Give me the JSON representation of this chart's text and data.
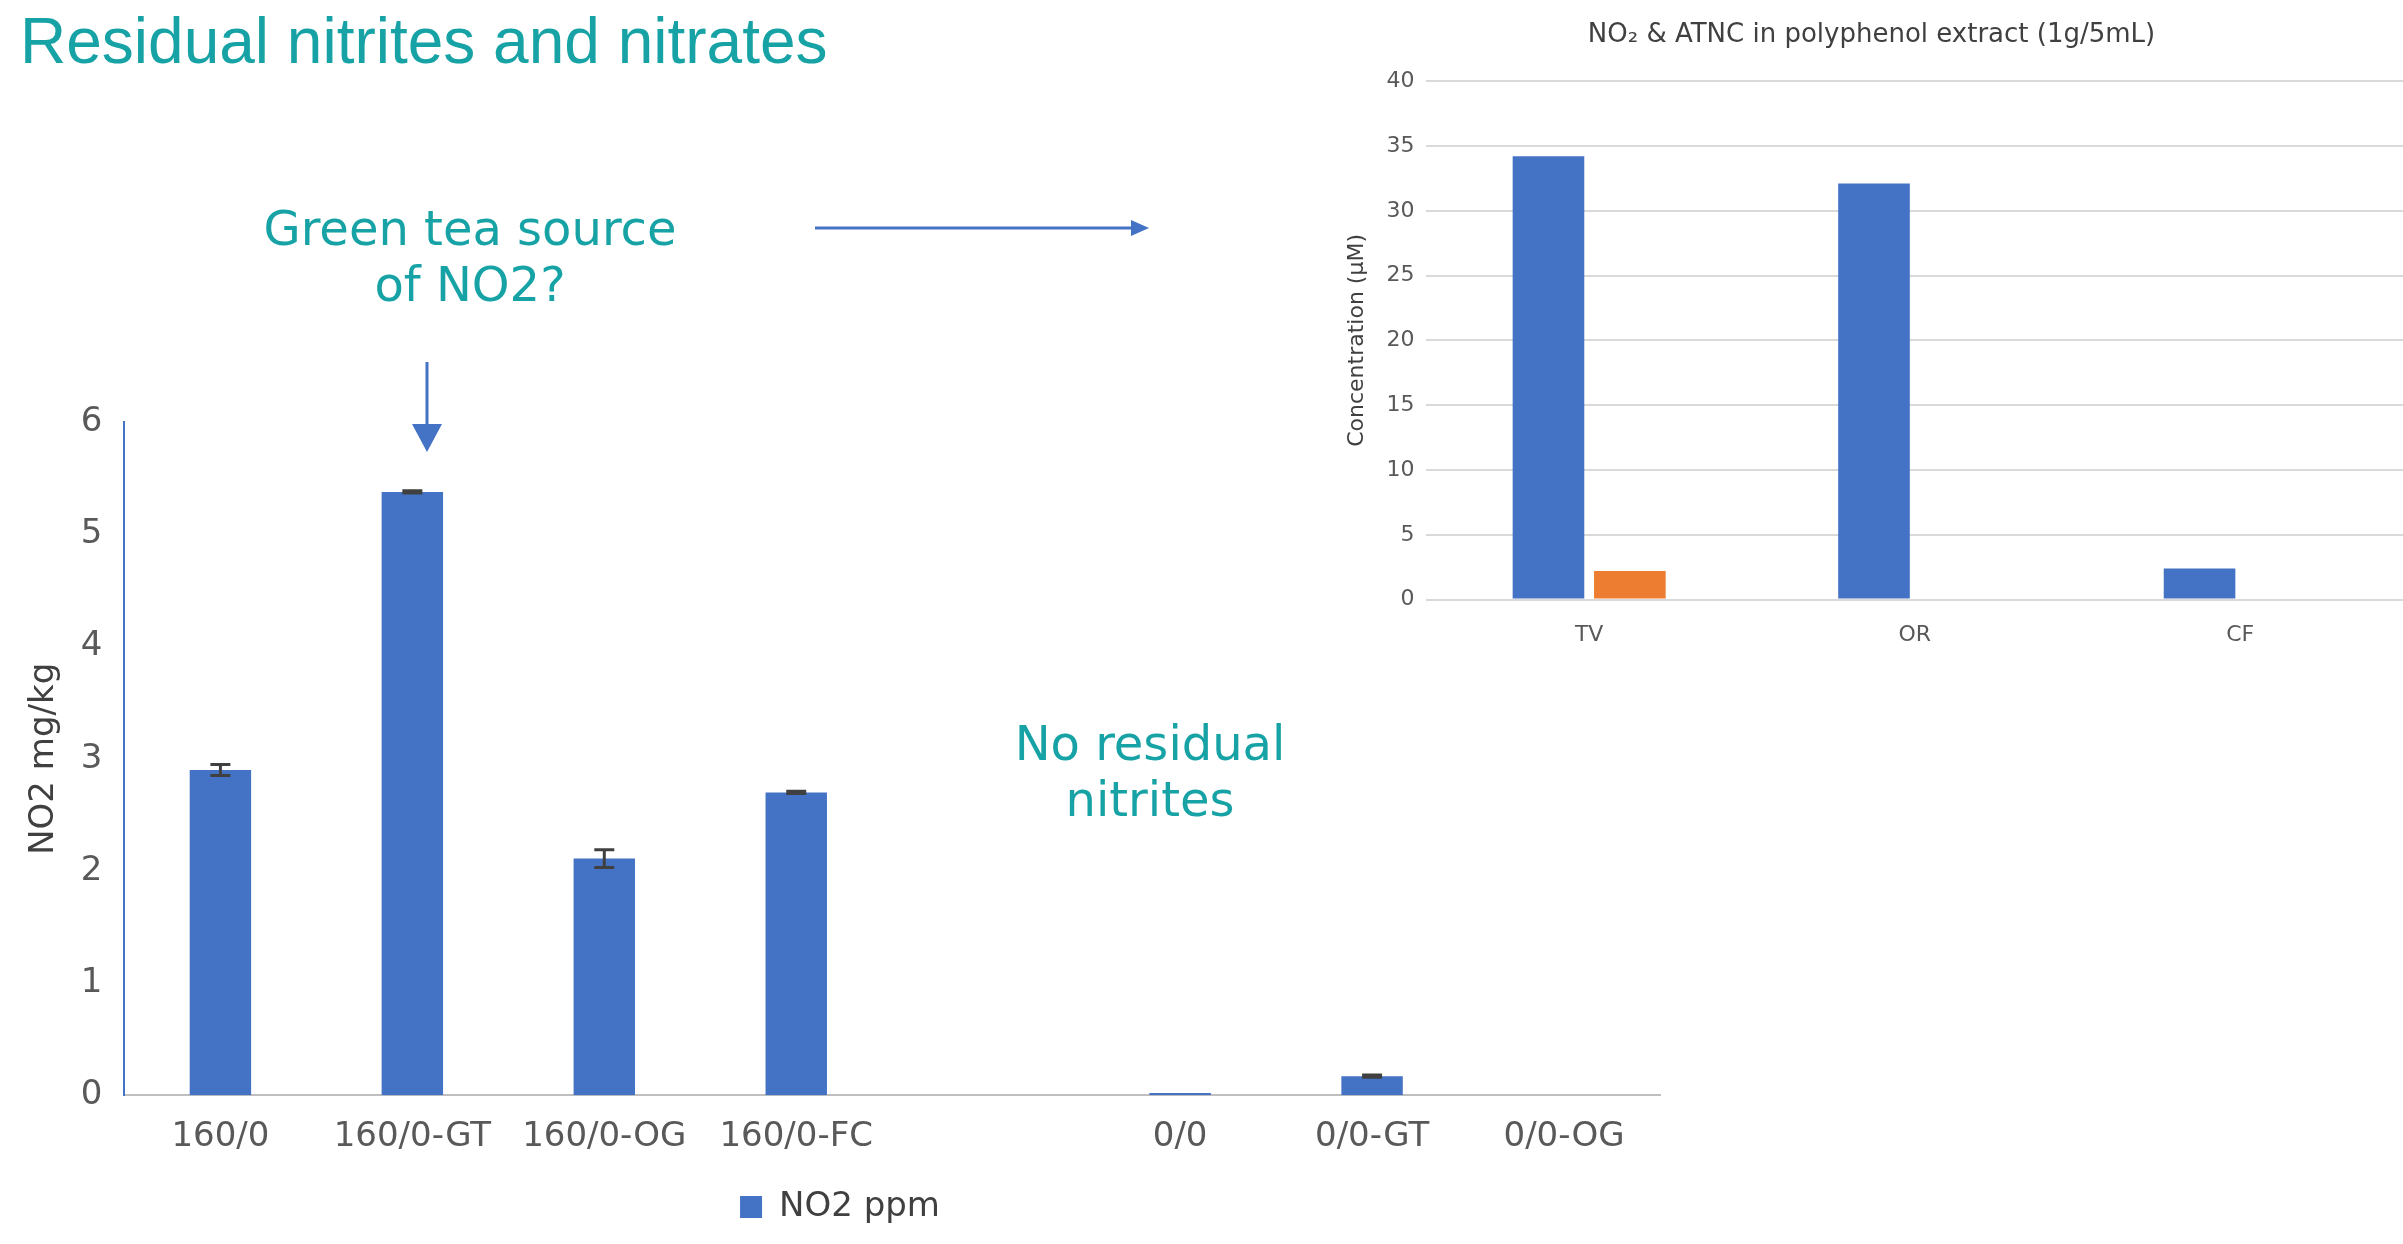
{
  "chart_data": [
    {
      "type": "bar",
      "title": "Residual nitrites and nitrates",
      "ylabel": "NO2 mg/kg",
      "categories": [
        "160/0",
        "160/0-GT",
        "160/0-OG",
        "160/0-FC",
        null,
        "0/0",
        "0/0-GT",
        "0/0-OG"
      ],
      "series": [
        {
          "name": "NO2 ppm",
          "color": "#4472c4",
          "values": [
            2.9,
            5.38,
            2.11,
            2.7,
            null,
            0.02,
            0.17,
            0
          ],
          "errors": [
            0.05,
            0.01,
            0.08,
            0.01,
            null,
            null,
            0.01,
            null
          ]
        }
      ],
      "ylim": [
        0,
        6
      ],
      "yticks": [
        0,
        1,
        2,
        3,
        4,
        5,
        6
      ],
      "legend": "bottom",
      "annotations": [
        "Green tea source of NO2?",
        "No residual nitrites"
      ]
    },
    {
      "type": "bar",
      "title": "NO₂ & ATNC in polyphenol extract (1g/5mL)",
      "ylabel": "Concentration (µM)",
      "categories": [
        "TV",
        "OR",
        "CF"
      ],
      "series": [
        {
          "color": "#4472c4",
          "values": [
            34.2,
            32.1,
            2.4
          ]
        },
        {
          "color": "#ed7d31",
          "values": [
            2.2,
            0,
            0
          ]
        }
      ],
      "ylim": [
        0,
        40
      ],
      "yticks": [
        0,
        5,
        10,
        15,
        20,
        25,
        30,
        35,
        40
      ],
      "grid": "y"
    }
  ]
}
